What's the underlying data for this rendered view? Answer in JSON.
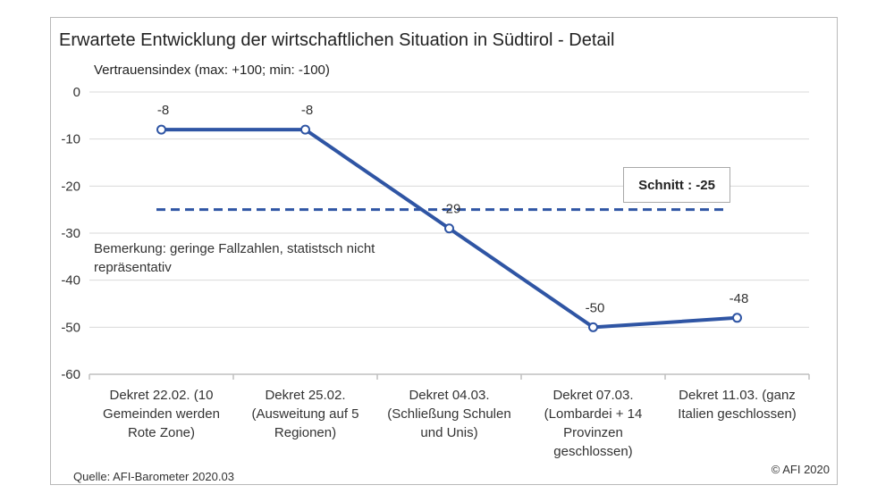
{
  "chart_data": {
    "type": "line",
    "title": "Erwartete Entwicklung der wirtschaftlichen Situation in Südtirol - Detail",
    "ylabel": "Vertrauensindex (max: +100; min: -100)",
    "xlabel": "",
    "ylim": [
      -60,
      0
    ],
    "yticks": [
      0,
      -10,
      -20,
      -30,
      -40,
      -50,
      -60
    ],
    "categories": [
      "Dekret 22.02. (10\nGemeinden werden\nRote Zone)",
      "Dekret 25.02.\n(Ausweitung auf 5\nRegionen)",
      "Dekret 04.03.\n(Schließung Schulen\nund Unis)",
      "Dekret 07.03.\n(Lombardei + 14\nProvinzen\ngeschlossen)",
      "Dekret 11.03. (ganz\nItalien geschlossen)"
    ],
    "series": [
      {
        "values": [
          -8,
          -8,
          -29,
          -50,
          -48
        ],
        "data_labels": [
          "-8",
          "-8",
          "-29",
          "-50",
          "-48"
        ]
      }
    ],
    "average": {
      "value": -25,
      "label": "Schnitt : -25"
    },
    "grid": true,
    "colors": {
      "line": "#2f55a4",
      "grid": "#d9d9d9",
      "axis": "#bfbfbf"
    }
  },
  "note": "Bemerkung: geringe Fallzahlen, statistsch nicht repräsentativ",
  "source": "Quelle: AFI-Barometer 2020.03",
  "copyright": "© AFI 2020"
}
